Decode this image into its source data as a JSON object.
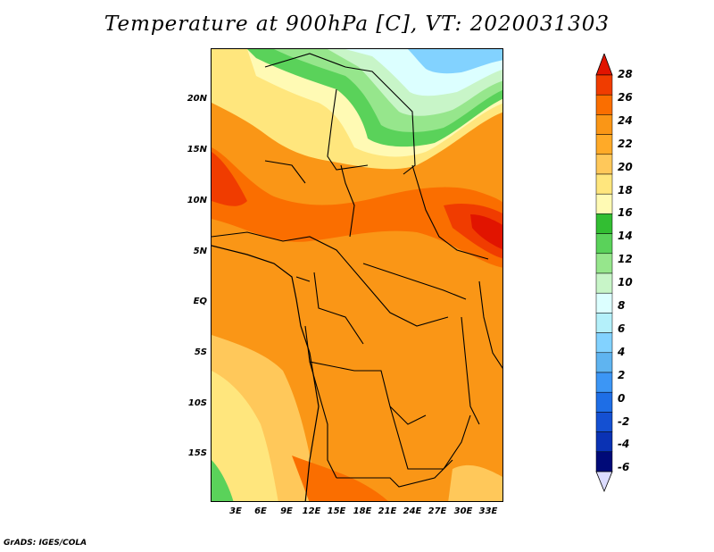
{
  "title": "Temperature at 900hPa [C], VT: 2020031303",
  "footer": "GrADS: IGES/COLA",
  "y_axis_labels": [
    "20N",
    "15N",
    "10N",
    "5N",
    "EQ",
    "5S",
    "10S",
    "15S"
  ],
  "x_axis_labels": [
    "3E",
    "6E",
    "9E",
    "12E",
    "15E",
    "18E",
    "21E",
    "24E",
    "27E",
    "30E",
    "33E"
  ],
  "colorbar": {
    "labels": [
      "28",
      "26",
      "24",
      "22",
      "20",
      "18",
      "16",
      "14",
      "12",
      "10",
      "8",
      "6",
      "4",
      "2",
      "0",
      "-2",
      "-4",
      "-6"
    ],
    "colors": [
      "#e11400",
      "#f03c00",
      "#fa6e00",
      "#fa9616",
      "#ffaa28",
      "#ffc85a",
      "#ffe67d",
      "#fffab4",
      "#32be32",
      "#5ad25a",
      "#96e68c",
      "#c8f5c8",
      "#dcffff",
      "#b4f0fa",
      "#82d2ff",
      "#5fb4f0",
      "#3c96f5",
      "#1e6ee6",
      "#1450d2",
      "#0a32b4",
      "#000a78",
      "#dcdcff"
    ]
  }
}
